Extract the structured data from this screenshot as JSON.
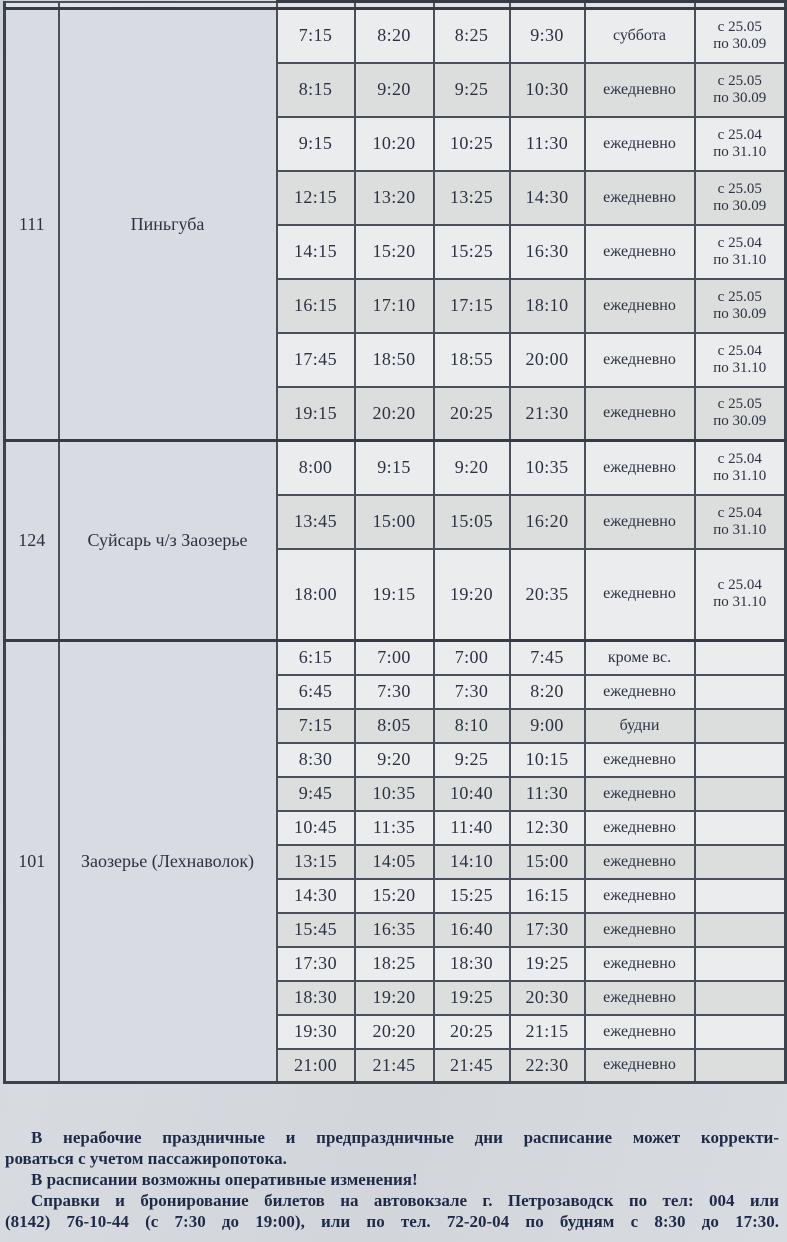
{
  "table": {
    "sections": [
      {
        "route": "111",
        "destination": "Пиньгуба",
        "rows": [
          {
            "times": [
              "7:15",
              "8:20",
              "8:25",
              "9:30"
            ],
            "days": "суббота",
            "period": [
              "с 25.05",
              "по 30.09"
            ]
          },
          {
            "times": [
              "8:15",
              "9:20",
              "9:25",
              "10:30"
            ],
            "days": "ежедневно",
            "period": [
              "с 25.05",
              "по 30.09"
            ]
          },
          {
            "times": [
              "9:15",
              "10:20",
              "10:25",
              "11:30"
            ],
            "days": "ежедневно",
            "period": [
              "с 25.04",
              "по 31.10"
            ]
          },
          {
            "times": [
              "12:15",
              "13:20",
              "13:25",
              "14:30"
            ],
            "days": "ежедневно",
            "period": [
              "с 25.05",
              "по 30.09"
            ]
          },
          {
            "times": [
              "14:15",
              "15:20",
              "15:25",
              "16:30"
            ],
            "days": "ежедневно",
            "period": [
              "с 25.04",
              "по 31.10"
            ]
          },
          {
            "times": [
              "16:15",
              "17:10",
              "17:15",
              "18:10"
            ],
            "days": "ежедневно",
            "period": [
              "с 25.05",
              "по 30.09"
            ]
          },
          {
            "times": [
              "17:45",
              "18:50",
              "18:55",
              "20:00"
            ],
            "days": "ежедневно",
            "period": [
              "с 25.04",
              "по 31.10"
            ]
          },
          {
            "times": [
              "19:15",
              "20:20",
              "20:25",
              "21:30"
            ],
            "days": "ежедневно",
            "period": [
              "с 25.05",
              "по 30.09"
            ]
          }
        ]
      },
      {
        "route": "124",
        "destination": "Суйсарь ч/з Заозерье",
        "rows": [
          {
            "times": [
              "8:00",
              "9:15",
              "9:20",
              "10:35"
            ],
            "days": "ежедневно",
            "period": [
              "с 25.04",
              "по 31.10"
            ]
          },
          {
            "times": [
              "13:45",
              "15:00",
              "15:05",
              "16:20"
            ],
            "days": "ежедневно",
            "period": [
              "с 25.04",
              "по 31.10"
            ]
          },
          {
            "times": [
              "18:00",
              "19:15",
              "19:20",
              "20:35"
            ],
            "days": "ежедневно",
            "period": [
              "с 25.04",
              "по 31.10"
            ]
          }
        ]
      },
      {
        "route": "101",
        "destination": "Заозерье (Лехнаволок)",
        "rows": [
          {
            "times": [
              "6:15",
              "7:00",
              "7:00",
              "7:45"
            ],
            "days": "кроме вс.",
            "period": []
          },
          {
            "times": [
              "6:45",
              "7:30",
              "7:30",
              "8:20"
            ],
            "days": "ежедневно",
            "period": []
          },
          {
            "times": [
              "7:15",
              "8:05",
              "8:10",
              "9:00"
            ],
            "days": "будни",
            "period": []
          },
          {
            "times": [
              "8:30",
              "9:20",
              "9:25",
              "10:15"
            ],
            "days": "ежедневно",
            "period": []
          },
          {
            "times": [
              "9:45",
              "10:35",
              "10:40",
              "11:30"
            ],
            "days": "ежедневно",
            "period": []
          },
          {
            "times": [
              "10:45",
              "11:35",
              "11:40",
              "12:30"
            ],
            "days": "ежедневно",
            "period": []
          },
          {
            "times": [
              "13:15",
              "14:05",
              "14:10",
              "15:00"
            ],
            "days": "ежедневно",
            "period": []
          },
          {
            "times": [
              "14:30",
              "15:20",
              "15:25",
              "16:15"
            ],
            "days": "ежедневно",
            "period": []
          },
          {
            "times": [
              "15:45",
              "16:35",
              "16:40",
              "17:30"
            ],
            "days": "ежедневно",
            "period": []
          },
          {
            "times": [
              "17:30",
              "18:25",
              "18:30",
              "19:25"
            ],
            "days": "ежедневно",
            "period": []
          },
          {
            "times": [
              "18:30",
              "19:20",
              "19:25",
              "20:30"
            ],
            "days": "ежедневно",
            "period": []
          },
          {
            "times": [
              "19:30",
              "20:20",
              "20:25",
              "21:15"
            ],
            "days": "ежедневно",
            "period": []
          },
          {
            "times": [
              "21:00",
              "21:45",
              "21:45",
              "22:30"
            ],
            "days": "ежедневно",
            "period": []
          }
        ]
      }
    ]
  },
  "footer": {
    "lines": [
      "В нерабочие праздничные и предпраздничные дни расписание может корректи-",
      "роваться с учетом пассажиропотока.",
      "В расписании возможны оперативные изменения!",
      "Справки и бронирование билетов на автовокзале г. Петрозаводск по тел: 004 или",
      "(8142) 76-10-44 (с 7:30 до 19:00), или по тел. 72-20-04 по будням с 8:30 до 17:30."
    ]
  },
  "colors": {
    "paper": "#d4d8dd",
    "row_light": "#eaecee",
    "row_shaded": "#dbdedd",
    "label_cell": "#d8dbe1",
    "border": "#3c424c",
    "ink": "#2b3242",
    "footer_ink": "#1f2a49"
  }
}
